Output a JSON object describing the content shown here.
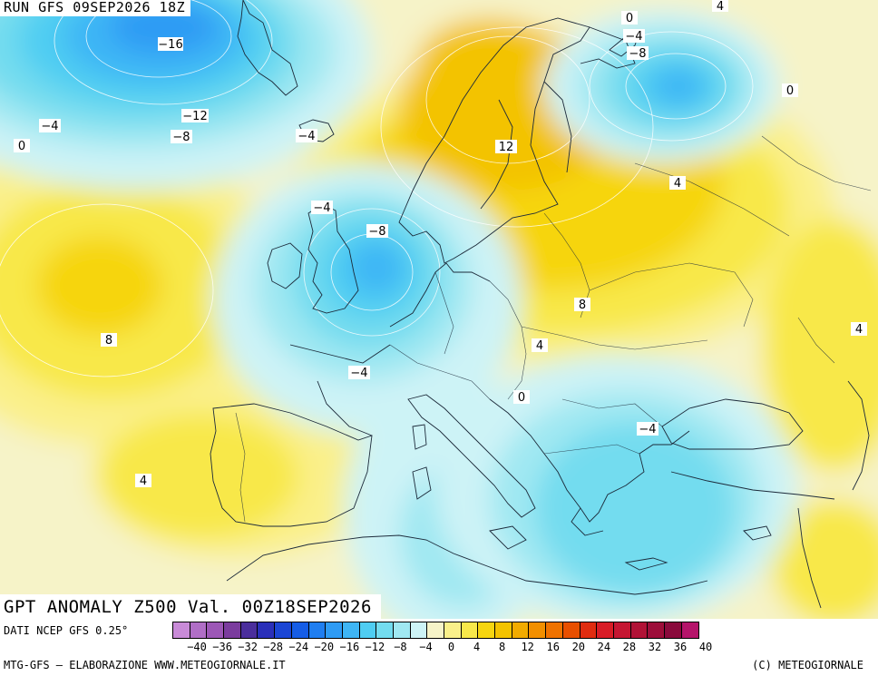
{
  "header": {
    "run_label": "RUN GFS 09SEP2026 18Z"
  },
  "map": {
    "title": "GPT ANOMALY Z500 Val. 00Z18SEP2026",
    "contour_labels": [
      {
        "id": "c-16",
        "text": "−16"
      },
      {
        "id": "c-12a",
        "text": "−12"
      },
      {
        "id": "c-8a",
        "text": "−8"
      },
      {
        "id": "c-4a",
        "text": "−4"
      },
      {
        "id": "c0a",
        "text": "0"
      },
      {
        "id": "c-4b",
        "text": "−4"
      },
      {
        "id": "c-4c",
        "text": "−4"
      },
      {
        "id": "c-8b",
        "text": "−8"
      },
      {
        "id": "c8a",
        "text": "8"
      },
      {
        "id": "c-4d",
        "text": "−4"
      },
      {
        "id": "c12",
        "text": "12"
      },
      {
        "id": "c0b",
        "text": "0"
      },
      {
        "id": "c-4e",
        "text": "−4"
      },
      {
        "id": "c-8c",
        "text": "−8"
      },
      {
        "id": "c4a",
        "text": "4"
      },
      {
        "id": "c0c",
        "text": "0"
      },
      {
        "id": "c4b",
        "text": "4"
      },
      {
        "id": "c8b",
        "text": "8"
      },
      {
        "id": "c4c",
        "text": "4"
      },
      {
        "id": "c4d",
        "text": "4"
      },
      {
        "id": "c0d",
        "text": "0"
      },
      {
        "id": "c-4f",
        "text": "−4"
      },
      {
        "id": "c4e",
        "text": "4"
      }
    ]
  },
  "footer": {
    "data_source": "DATI NCEP GFS 0.25°",
    "elaboration": "MTG-GFS — ELABORAZIONE WWW.METEOGIORNALE.IT",
    "copyright": "(C) METEOGIORNALE"
  },
  "legend": {
    "colors": [
      "#c98bd8",
      "#b06ec6",
      "#9c57b6",
      "#7b3c9e",
      "#4b2e9c",
      "#2a2fb9",
      "#1b45d4",
      "#165de6",
      "#1f7ef0",
      "#2e9bf4",
      "#3eb5f5",
      "#4fcdf2",
      "#73dcef",
      "#a0e8f2",
      "#cdf3f6",
      "#f6f3c8",
      "#faf08a",
      "#f8e84a",
      "#f6d510",
      "#f3c300",
      "#f2ab00",
      "#f28f00",
      "#f07200",
      "#e84f00",
      "#e02c10",
      "#d81c26",
      "#c51632",
      "#b11236",
      "#9d0e3a",
      "#8a0a3c",
      "#b5146a"
    ],
    "ticks": [
      "−40",
      "−36",
      "−32",
      "−28",
      "−24",
      "−20",
      "−16",
      "−12",
      "−8",
      "−4",
      "0",
      "4",
      "8",
      "12",
      "16",
      "20",
      "24",
      "28",
      "32",
      "36",
      "40"
    ]
  }
}
